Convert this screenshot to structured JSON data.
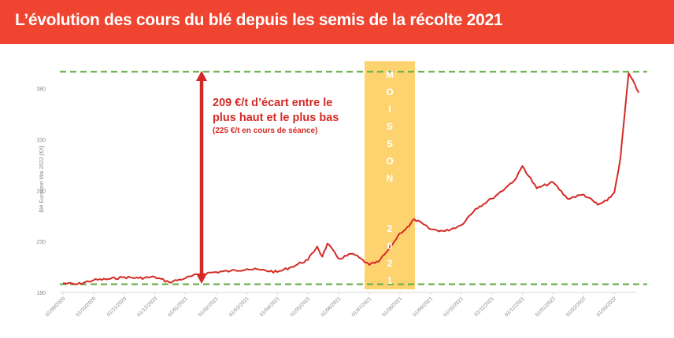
{
  "header": {
    "title": "L’évolution des cours du blé depuis les semis de la récolte 2021",
    "background": "#ee4430"
  },
  "annotation": {
    "line1": "209 €/t d’écart entre le",
    "line2": "plus haut et le plus bas",
    "line3": "(225 €/t en cours de séance)",
    "color": "#d42a25"
  },
  "harvest_band": {
    "label_word": "MOISSON",
    "label_year": "2021",
    "color": "#fdd36f"
  },
  "chart_data": {
    "type": "line",
    "title": "L’évolution des cours du blé depuis les semis de la récolte 2021",
    "ylabel": "Blé Euronext Mai 2022 (€/t)",
    "xlabel": "",
    "ylim": [
      180,
      400
    ],
    "yticks": [
      180,
      230,
      280,
      330,
      380
    ],
    "xticks": [
      "01/09/2020",
      "01/10/2020",
      "01/11/2020",
      "01/12/2020",
      "01/01/2021",
      "01/02/2021",
      "01/03/2021",
      "01/04/2021",
      "01/05/2021",
      "01/06/2021",
      "01/07/2021",
      "01/08/2021",
      "01/09/2021",
      "01/10/2021",
      "01/11/2021",
      "01/12/2021",
      "01/01/2022",
      "01/02/2022",
      "01/03/2022"
    ],
    "grid": false,
    "legend": "none",
    "reference_lines": [
      {
        "name": "plus haut",
        "value": 398,
        "style": "dashed",
        "color": "#6ab04c"
      },
      {
        "name": "plus bas",
        "value": 188,
        "style": "dashed",
        "color": "#6ab04c"
      }
    ],
    "highlight_region": {
      "label": "MOISSON 2021",
      "from": "~01/07/2021",
      "to": "~15/08/2021"
    },
    "series": [
      {
        "name": "Blé Euronext Mai 2022",
        "color": "#d42a25",
        "x": [
          "01/09/2020",
          "15/09/2020",
          "01/10/2020",
          "15/10/2020",
          "01/11/2020",
          "15/11/2020",
          "01/12/2020",
          "15/12/2020",
          "01/01/2021",
          "15/01/2021",
          "01/02/2021",
          "15/02/2021",
          "01/03/2021",
          "15/03/2021",
          "01/04/2021",
          "15/04/2021",
          "01/05/2021",
          "10/05/2021",
          "15/05/2021",
          "20/05/2021",
          "01/06/2021",
          "15/06/2021",
          "01/07/2021",
          "10/07/2021",
          "20/07/2021",
          "01/08/2021",
          "10/08/2021",
          "15/08/2021",
          "01/09/2021",
          "15/09/2021",
          "01/10/2021",
          "15/10/2021",
          "01/11/2021",
          "15/11/2021",
          "25/11/2021",
          "01/12/2021",
          "15/12/2021",
          "01/01/2022",
          "15/01/2022",
          "01/02/2022",
          "15/02/2022",
          "24/02/2022",
          "01/03/2022",
          "07/03/2022",
          "15/03/2022",
          "25/03/2022"
        ],
        "values": [
          189,
          188,
          192,
          193,
          195,
          194,
          195,
          190,
          194,
          198,
          200,
          201,
          203,
          202,
          200,
          205,
          212,
          225,
          215,
          228,
          213,
          218,
          207,
          210,
          222,
          238,
          245,
          252,
          242,
          240,
          246,
          262,
          272,
          283,
          292,
          304,
          282,
          288,
          272,
          276,
          266,
          270,
          278,
          312,
          395,
          376
        ]
      }
    ]
  }
}
